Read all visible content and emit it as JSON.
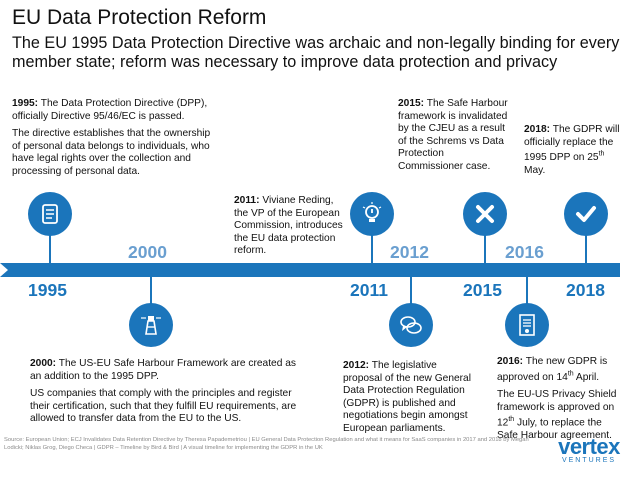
{
  "header": {
    "title": "EU Data Protection Reform",
    "subtitle": "The EU 1995 Data Protection Directive was archaic and non-legally binding for every member state; reform was necessary to improve data protection and privacy"
  },
  "notes": {
    "n1995": {
      "year": "1995:",
      "lead": "The Data Protection Directive (DPP), officially Directive 95/46/EC is passed.",
      "body": "The directive establishes that the ownership of personal data belongs to individuals, who have legal rights over the collection and processing of personal data."
    },
    "n2000": {
      "year": "2000:",
      "lead": "The US-EU Safe Harbour Framework are created as an addition to the 1995 DPP.",
      "body": "US companies that comply with the principles and register their certification, such that they fulfill EU requirements, are allowed to transfer data from the EU to the US."
    },
    "n2011": {
      "year": "2011:",
      "lead": "Viviane Reding, the VP of the European Commission, introduces the EU data protection reform."
    },
    "n2012": {
      "year": "2012:",
      "lead": "The legislative proposal of the new General Data Protection Regulation (GDPR) is published and negotiations begin amongst European parliaments."
    },
    "n2015": {
      "year": "2015:",
      "lead": "The Safe Harbour framework is invalidated by the CJEU as a result of the Schrems vs Data Protection Commissioner case."
    },
    "n2016": {
      "year": "2016:",
      "lead_pre": "The new GDPR is approved on 14",
      "lead_sup": "th",
      "lead_post": " April.",
      "body_pre": "The EU-US Privacy Shield framework is approved on 12",
      "body_sup": "th",
      "body_post": " July, to replace the Safe Harbour agreement."
    },
    "n2018": {
      "year": "2018:",
      "lead_pre": "The GDPR will officially replace the 1995 DPP on 25",
      "lead_sup": "th",
      "lead_post": " May."
    }
  },
  "timeline": {
    "years": [
      "1995",
      "2000",
      "2011",
      "2012",
      "2015",
      "2016",
      "2018"
    ],
    "accent_color": "#1b75bb",
    "icons": [
      "scroll-icon",
      "lighthouse-icon",
      "lightbulb-icon",
      "speech-bubbles-icon",
      "cross-icon",
      "certificate-icon",
      "checkmark-icon"
    ]
  },
  "footer": {
    "source": "Source: European Union; ECJ Invalidates Data Retention Directive by Theresa Papademetriou | EU General Data Protection Regulation and what it means for SaaS companies in 2017 and 2018 by Megan Lodicki; Niklas Grog, Diego Checa | GDPR – Timeline by Bird & Bird | A visual timeline for implementing the GDPR in the UK"
  },
  "logo": {
    "word": "vertex",
    "sub": "VENTURES"
  }
}
